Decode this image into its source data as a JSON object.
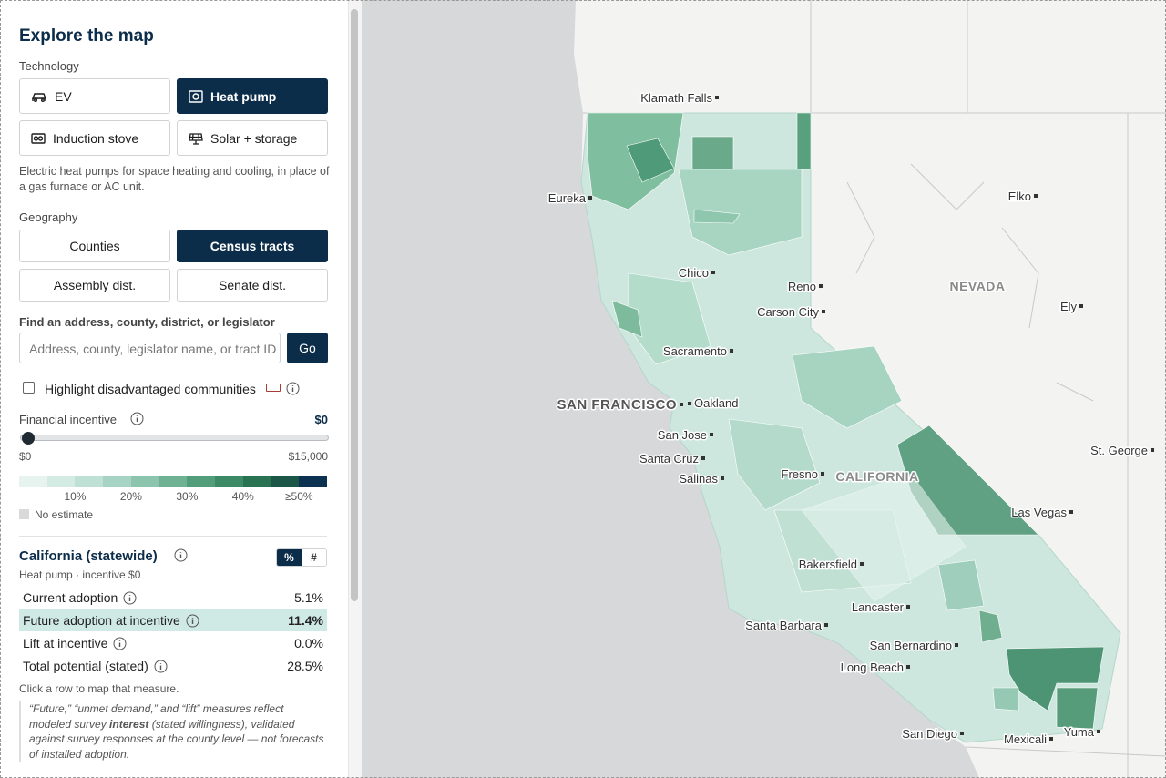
{
  "panel": {
    "title": "Explore the map",
    "technology": {
      "label": "Technology",
      "options": [
        "EV",
        "Heat pump",
        "Induction stove",
        "Solar + storage"
      ],
      "selected": 1
    },
    "description": "Electric heat pumps for space heating and cooling, in place of a gas furnace or AC unit.",
    "geography": {
      "label": "Geography",
      "options": [
        "Counties",
        "Census tracts",
        "Assembly dist.",
        "Senate dist."
      ],
      "selected": 1
    },
    "search": {
      "label": "Find an address, county, district, or legislator",
      "placeholder": "Address, county, legislator name, or tract ID",
      "button": "Go"
    },
    "highlight": "Highlight disadvantaged communities",
    "incentive": {
      "label": "Financial incentive",
      "value": "$0",
      "min": "$0",
      "max": "$15,000"
    },
    "legend": {
      "colors": [
        "#e6f3ef",
        "#d4ebe3",
        "#bfe0d5",
        "#a6d3c3",
        "#8cc4ae",
        "#6fb293",
        "#529e7a",
        "#3c8a66",
        "#2a7352",
        "#1b5647",
        "#0d3150"
      ],
      "labels": [
        "10%",
        "20%",
        "30%",
        "40%",
        "≥50%"
      ],
      "no_estimate": "No estimate"
    },
    "summary": {
      "title": "California (statewide)",
      "subtitle": "Heat pump · incentive $0",
      "toggle": [
        "%",
        "#"
      ],
      "toggle_selected": 0,
      "rows": [
        [
          "Current adoption",
          "5.1%"
        ],
        [
          "Future adoption at incentive",
          "11.4%"
        ],
        [
          "Lift at incentive",
          "0.0%"
        ],
        [
          "Total potential (stated)",
          "28.5%"
        ]
      ],
      "active_row": 1,
      "hint": "Click a row to map that measure.",
      "note": [
        "“Future,” “unmet demand,” and “lift” measures reflect modeled survey ",
        "interest",
        " (stated willingness), validated against survey responses at the county level — not forecasts of installed adoption."
      ]
    }
  },
  "map": {
    "labels": [
      "Klamath Falls",
      "Eureka",
      "Elko",
      "Chico",
      "Reno",
      "NEVADA",
      "Carson City",
      "Ely",
      "Sacramento",
      "SAN FRANCISCO",
      "Oakland",
      "San Jose",
      "Santa Cruz",
      "Salinas",
      "Fresno",
      "CALIFORNIA",
      "St. George",
      "Las Vegas",
      "Bakersfield",
      "Lancaster",
      "Santa Barbara",
      "San Bernardino",
      "Long Beach",
      "San Diego",
      "Mexicali",
      "Yuma"
    ]
  }
}
